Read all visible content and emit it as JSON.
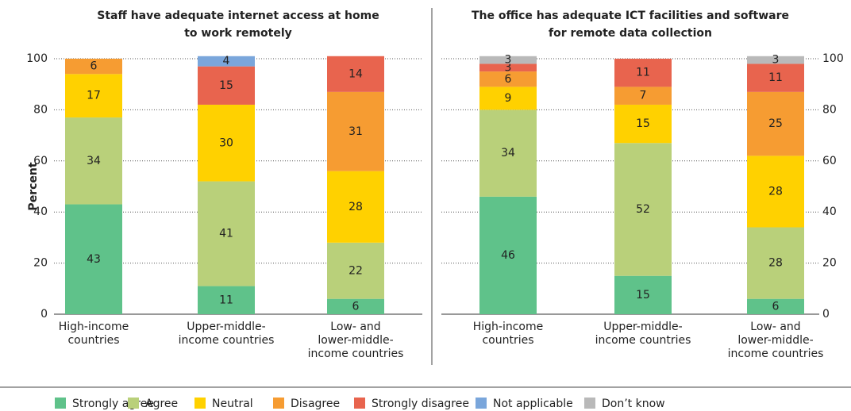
{
  "chart_data": [
    {
      "type": "bar",
      "stacked": true,
      "title": "Staff have adequate internet access at home\nto work remotely",
      "ylabel": "Percent",
      "yaxis_side": "left",
      "categories": [
        "High-income\ncountries",
        "Upper-middle-\nincome countries",
        "Low- and\nlower-middle-\nincome countries"
      ],
      "ylim": [
        0,
        100
      ],
      "yticks": [
        0,
        20,
        40,
        60,
        80,
        100
      ],
      "grid": true,
      "series": [
        {
          "name": "Strongly agree",
          "color": "#5fc28a",
          "values": [
            43,
            11,
            6
          ]
        },
        {
          "name": "Agree",
          "color": "#b9d07a",
          "values": [
            34,
            41,
            22
          ]
        },
        {
          "name": "Neutral",
          "color": "#ffd100",
          "values": [
            17,
            30,
            28
          ]
        },
        {
          "name": "Disagree",
          "color": "#f69c32",
          "values": [
            6,
            null,
            31
          ]
        },
        {
          "name": "Strongly disagree",
          "color": "#e8644e",
          "values": [
            null,
            15,
            14
          ]
        },
        {
          "name": "Not applicable",
          "color": "#7aa6db",
          "values": [
            null,
            4,
            null
          ]
        },
        {
          "name": "Don’t know",
          "color": "#b9b9b9",
          "values": [
            null,
            null,
            null
          ]
        }
      ]
    },
    {
      "type": "bar",
      "stacked": true,
      "title": "The office has adequate ICT facilities and software\nfor remote data collection",
      "yaxis_side": "right",
      "categories": [
        "High-income\ncountries",
        "Upper-middle-\nincome countries",
        "Low- and\nlower-middle-\nincome countries"
      ],
      "ylim": [
        0,
        100
      ],
      "yticks": [
        0,
        20,
        40,
        60,
        80,
        100
      ],
      "grid": true,
      "series": [
        {
          "name": "Strongly agree",
          "color": "#5fc28a",
          "values": [
            46,
            15,
            6
          ]
        },
        {
          "name": "Agree",
          "color": "#b9d07a",
          "values": [
            34,
            52,
            28
          ]
        },
        {
          "name": "Neutral",
          "color": "#ffd100",
          "values": [
            9,
            15,
            28
          ]
        },
        {
          "name": "Disagree",
          "color": "#f69c32",
          "values": [
            6,
            7,
            25
          ]
        },
        {
          "name": "Strongly disagree",
          "color": "#e8644e",
          "values": [
            3,
            11,
            11
          ]
        },
        {
          "name": "Not applicable",
          "color": "#7aa6db",
          "values": [
            null,
            null,
            null
          ]
        },
        {
          "name": "Don’t know",
          "color": "#b9b9b9",
          "values": [
            3,
            null,
            3
          ]
        }
      ]
    }
  ]
}
